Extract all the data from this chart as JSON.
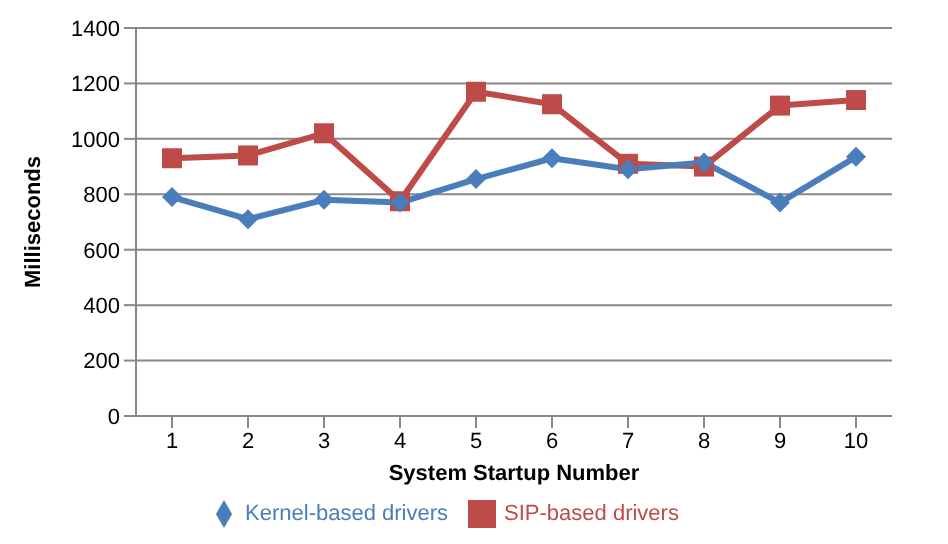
{
  "chart_data": {
    "type": "line",
    "xlabel": "System Startup Number",
    "ylabel": "Milliseconds",
    "categories": [
      "1",
      "2",
      "3",
      "4",
      "5",
      "6",
      "7",
      "8",
      "9",
      "10"
    ],
    "series": [
      {
        "name": "Kernel-based drivers",
        "color": "#4a7ebb",
        "marker": "diamond",
        "values": [
          790,
          710,
          780,
          770,
          855,
          930,
          890,
          915,
          770,
          935
        ]
      },
      {
        "name": "SIP-based drivers",
        "color": "#be4b48",
        "marker": "square",
        "values": [
          930,
          940,
          1020,
          775,
          1170,
          1125,
          910,
          900,
          1120,
          1140
        ]
      }
    ],
    "ylim": [
      0,
      1400
    ],
    "yticks": [
      0,
      200,
      400,
      600,
      800,
      1000,
      1200,
      1400
    ],
    "grid": "y",
    "legend": "bottom"
  }
}
